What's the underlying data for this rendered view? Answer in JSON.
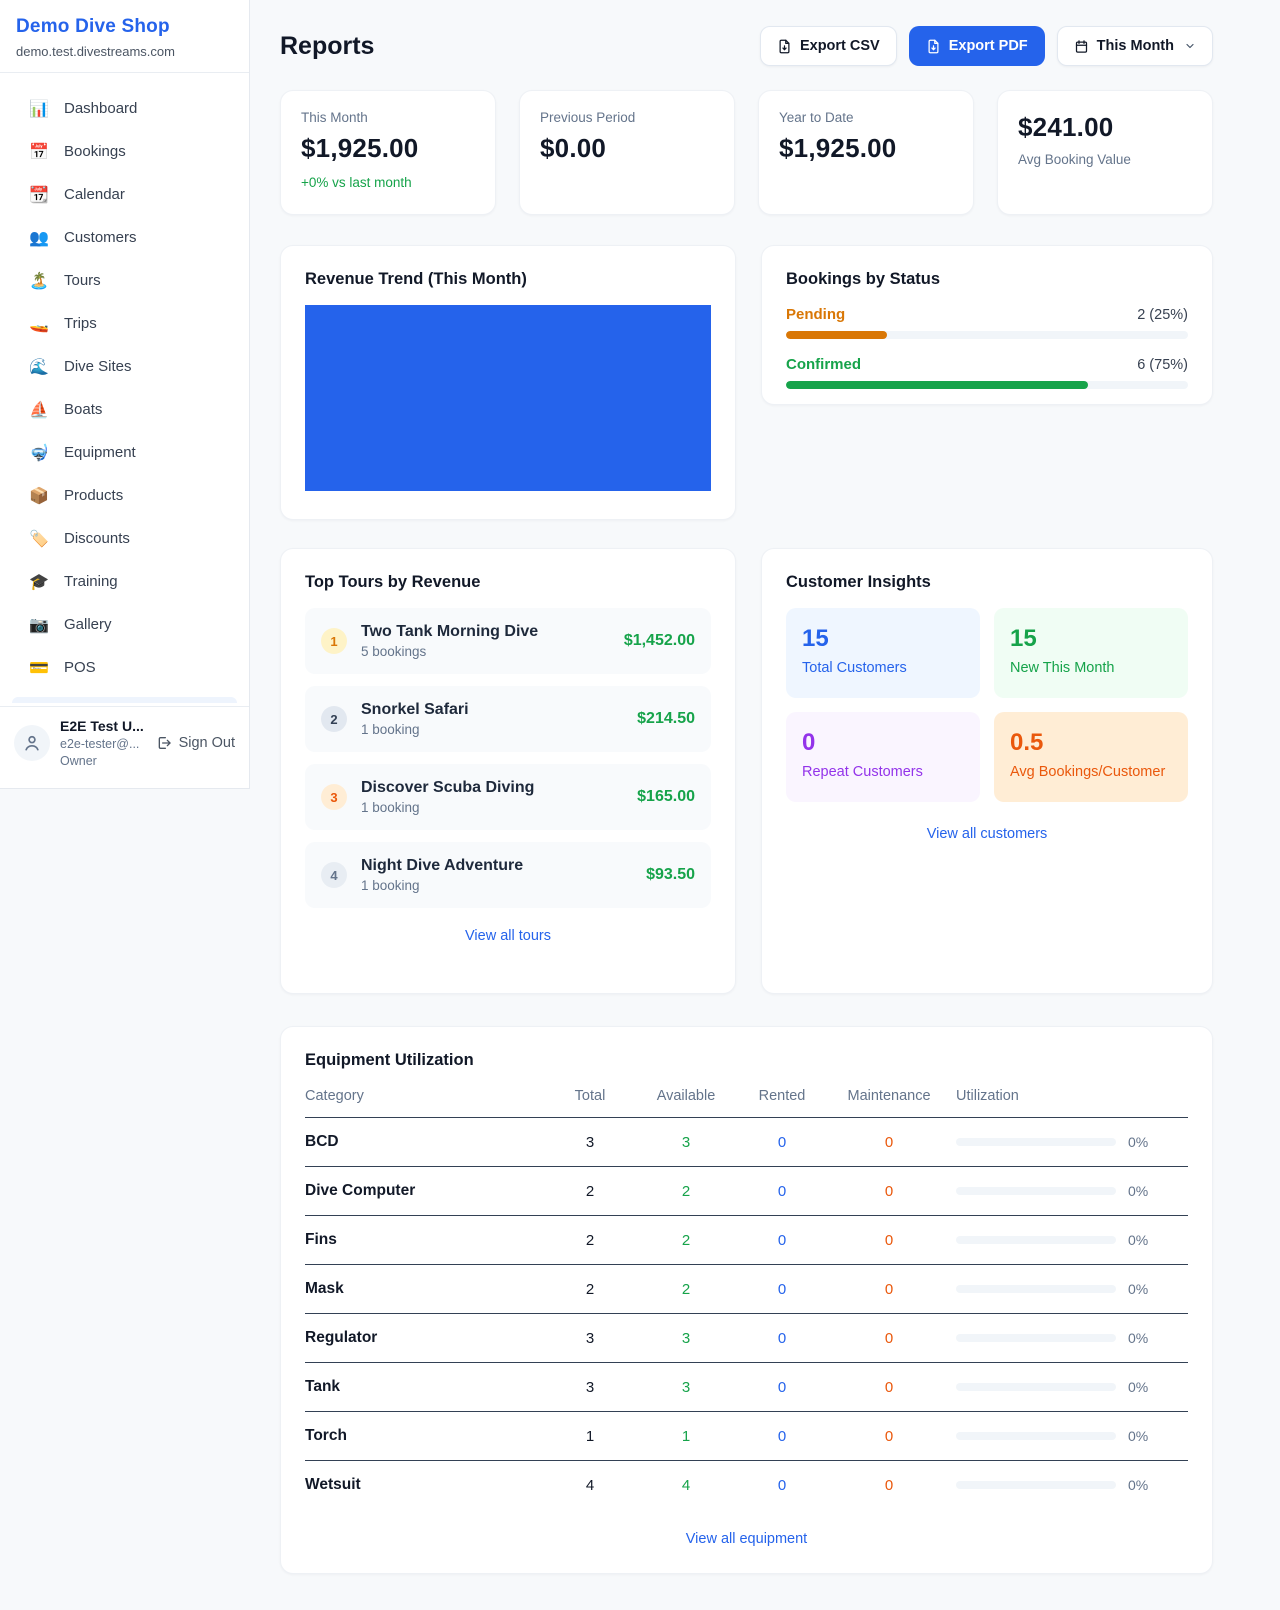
{
  "colors": {
    "accent": "#2563eb",
    "positive": "#16a34a",
    "pending": "#d97706",
    "maintenance": "#ea580c",
    "repeat": "#9333ea"
  },
  "brand": {
    "name": "Demo Dive Shop",
    "domain": "demo.test.divestreams.com"
  },
  "sidebar": {
    "items": [
      {
        "icon": "📊",
        "label": "Dashboard"
      },
      {
        "icon": "📅",
        "label": "Bookings"
      },
      {
        "icon": "📆",
        "label": "Calendar"
      },
      {
        "icon": "👥",
        "label": "Customers"
      },
      {
        "icon": "🏝️",
        "label": "Tours"
      },
      {
        "icon": "🚤",
        "label": "Trips"
      },
      {
        "icon": "🌊",
        "label": "Dive Sites"
      },
      {
        "icon": "⛵",
        "label": "Boats"
      },
      {
        "icon": "🤿",
        "label": "Equipment"
      },
      {
        "icon": "📦",
        "label": "Products"
      },
      {
        "icon": "🏷️",
        "label": "Discounts"
      },
      {
        "icon": "🎓",
        "label": "Training"
      },
      {
        "icon": "📷",
        "label": "Gallery"
      },
      {
        "icon": "💳",
        "label": "POS"
      }
    ],
    "user": {
      "name": "E2E Test U...",
      "email": "e2e-tester@...",
      "role": "Owner",
      "sign_out": "Sign Out"
    }
  },
  "header": {
    "title": "Reports",
    "export_csv": "Export CSV",
    "export_pdf": "Export PDF",
    "period": "This Month"
  },
  "stats": {
    "this_month": {
      "label": "This Month",
      "value": "$1,925.00",
      "delta": "+0% vs last month"
    },
    "previous_period": {
      "label": "Previous Period",
      "value": "$0.00"
    },
    "year_to_date": {
      "label": "Year to Date",
      "value": "$1,925.00"
    },
    "avg_booking": {
      "value": "$241.00",
      "label": "Avg Booking Value"
    }
  },
  "revenue_trend": {
    "title": "Revenue Trend (This Month)",
    "bar_color": "#2563eb"
  },
  "bookings_by_status": {
    "title": "Bookings by Status",
    "items": [
      {
        "label": "Pending",
        "count": "2 (25%)",
        "pct": "25%"
      },
      {
        "label": "Confirmed",
        "count": "6 (75%)",
        "pct": "75%"
      }
    ]
  },
  "top_tours": {
    "title": "Top Tours by Revenue",
    "rows": [
      {
        "rank": "1",
        "name": "Two Tank Morning Dive",
        "sub": "5 bookings",
        "amount": "$1,452.00"
      },
      {
        "rank": "2",
        "name": "Snorkel Safari",
        "sub": "1 booking",
        "amount": "$214.50"
      },
      {
        "rank": "3",
        "name": "Discover Scuba Diving",
        "sub": "1 booking",
        "amount": "$165.00"
      },
      {
        "rank": "4",
        "name": "Night Dive Adventure",
        "sub": "1 booking",
        "amount": "$93.50"
      }
    ],
    "view_all": "View all tours"
  },
  "customer_insights": {
    "title": "Customer Insights",
    "tiles": [
      {
        "value": "15",
        "label": "Total Customers"
      },
      {
        "value": "15",
        "label": "New This Month"
      },
      {
        "value": "0",
        "label": "Repeat Customers"
      },
      {
        "value": "0.5",
        "label": "Avg Bookings/Customer"
      }
    ],
    "view_all": "View all customers"
  },
  "equipment": {
    "title": "Equipment Utilization",
    "columns": {
      "category": "Category",
      "total": "Total",
      "available": "Available",
      "rented": "Rented",
      "maintenance": "Maintenance",
      "utilization": "Utilization"
    },
    "rows": [
      {
        "category": "BCD",
        "total": "3",
        "available": "3",
        "rented": "0",
        "maintenance": "0",
        "pct": "0%",
        "bar": "0%"
      },
      {
        "category": "Dive Computer",
        "total": "2",
        "available": "2",
        "rented": "0",
        "maintenance": "0",
        "pct": "0%",
        "bar": "0%"
      },
      {
        "category": "Fins",
        "total": "2",
        "available": "2",
        "rented": "0",
        "maintenance": "0",
        "pct": "0%",
        "bar": "0%"
      },
      {
        "category": "Mask",
        "total": "2",
        "available": "2",
        "rented": "0",
        "maintenance": "0",
        "pct": "0%",
        "bar": "0%"
      },
      {
        "category": "Regulator",
        "total": "3",
        "available": "3",
        "rented": "0",
        "maintenance": "0",
        "pct": "0%",
        "bar": "0%"
      },
      {
        "category": "Tank",
        "total": "3",
        "available": "3",
        "rented": "0",
        "maintenance": "0",
        "pct": "0%",
        "bar": "0%"
      },
      {
        "category": "Torch",
        "total": "1",
        "available": "1",
        "rented": "0",
        "maintenance": "0",
        "pct": "0%",
        "bar": "0%"
      },
      {
        "category": "Wetsuit",
        "total": "4",
        "available": "4",
        "rented": "0",
        "maintenance": "0",
        "pct": "0%",
        "bar": "0%"
      }
    ],
    "view_all": "View all equipment"
  },
  "chart_data": [
    {
      "type": "bar",
      "title": "Revenue Trend (This Month)",
      "categories": [
        "This Month"
      ],
      "values": [
        1925
      ],
      "ylim": [
        0,
        1925
      ],
      "note": "single full-area blue bar, no axes shown"
    },
    {
      "type": "bar",
      "title": "Bookings by Status",
      "categories": [
        "Pending",
        "Confirmed"
      ],
      "values": [
        2,
        6
      ],
      "percent": [
        25,
        75
      ]
    }
  ]
}
